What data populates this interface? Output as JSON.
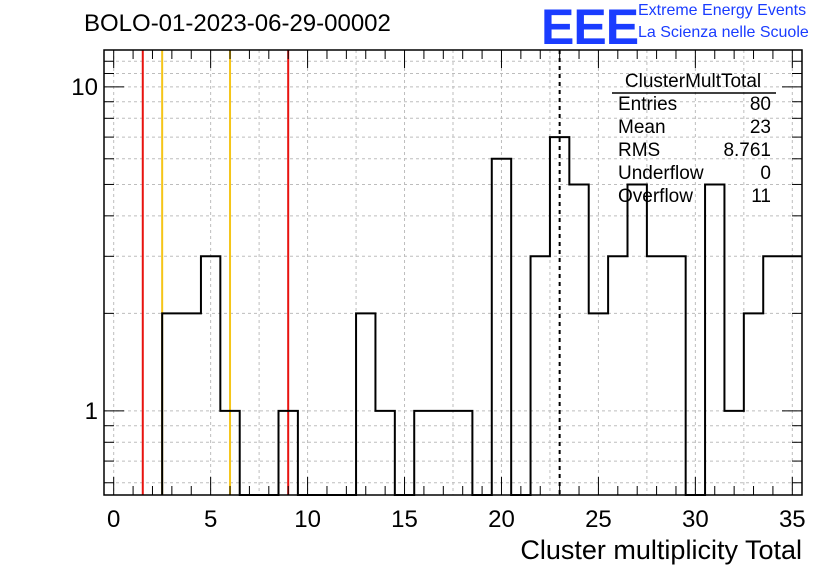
{
  "title": "BOLO-01-2023-06-29-00002",
  "logo": {
    "mark": "EEE",
    "line1": "Extreme Energy Events",
    "line2": "La Scienza nelle Scuole",
    "color": "#1a3cff"
  },
  "stats_box": {
    "name": "ClusterMultTotal",
    "rows": [
      {
        "label": "Entries",
        "value": "80"
      },
      {
        "label": "Mean",
        "value": "23"
      },
      {
        "label": "RMS",
        "value": "8.761"
      },
      {
        "label": "Underflow",
        "value": "0"
      },
      {
        "label": "Overflow",
        "value": "11"
      }
    ]
  },
  "chart_data": {
    "type": "histogram",
    "xlabel": "Cluster multiplicity Total",
    "ylabel": "",
    "xlim": [
      -0.5,
      35.5
    ],
    "ylim": [
      0.55,
      13
    ],
    "yscale": "log",
    "grid": true,
    "x_ticks": [
      0,
      5,
      10,
      15,
      20,
      25,
      30,
      35
    ],
    "y_ticks": [
      1,
      10
    ],
    "bin_edges": [
      2.5,
      3.5,
      4.5,
      5.5,
      6.5,
      7.5,
      8.5,
      9.5,
      10.5,
      11.5,
      12.5,
      13.5,
      14.5,
      15.5,
      16.5,
      17.5,
      18.5,
      19.5,
      20.5,
      21.5,
      22.5,
      23.5,
      24.5,
      25.5,
      26.5,
      27.5,
      28.5,
      29.5,
      30.5,
      31.5,
      32.5,
      33.5,
      34.5,
      35.5
    ],
    "counts": [
      2,
      2,
      3,
      1,
      0,
      0,
      1,
      0,
      0,
      0,
      2,
      1,
      0,
      1,
      1,
      1,
      0,
      6,
      0,
      3,
      7,
      5,
      2,
      3,
      5,
      3,
      3,
      0,
      5,
      1,
      2,
      3,
      3
    ],
    "vertical_lines": [
      {
        "x": 1.5,
        "color": "#e8130f",
        "style": "solid"
      },
      {
        "x": 2.5,
        "color": "#f5c518",
        "style": "solid"
      },
      {
        "x": 6.0,
        "color": "#f5c518",
        "style": "solid"
      },
      {
        "x": 9.0,
        "color": "#e8130f",
        "style": "solid"
      },
      {
        "x": 23.0,
        "color": "#000000",
        "style": "dashed"
      }
    ]
  }
}
